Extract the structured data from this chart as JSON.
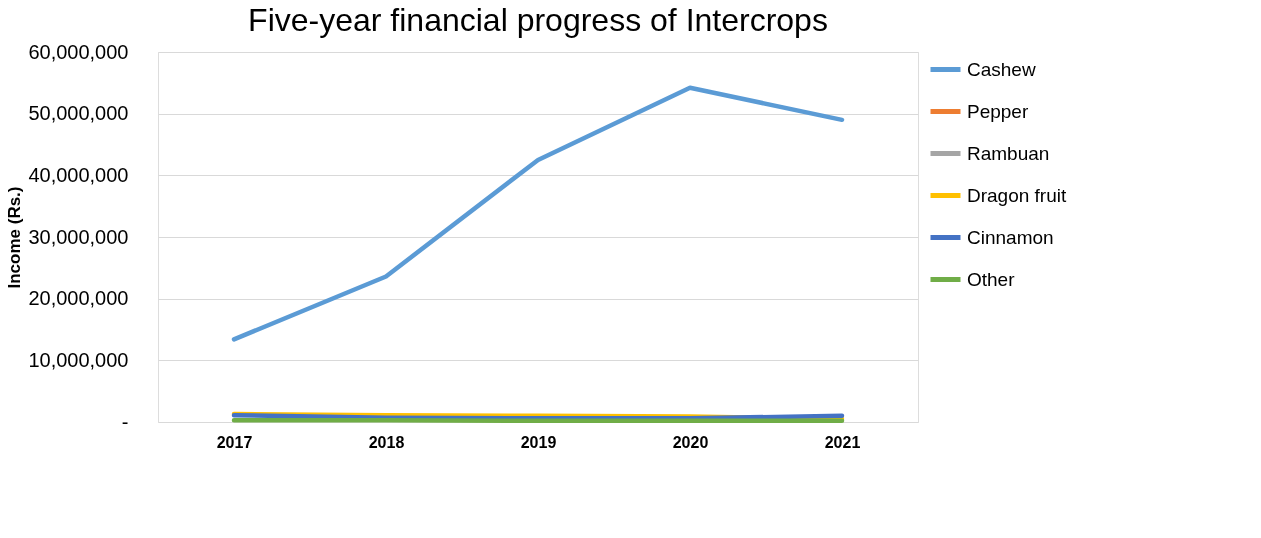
{
  "chart_data": {
    "type": "line",
    "title": "Five-year financial progress  of Intercrops",
    "ylabel": "Income (Rs.)",
    "categories": [
      "2017",
      "2018",
      "2019",
      "2020",
      "2021"
    ],
    "series": [
      {
        "name": "Cashew",
        "color": "#5b9bd5",
        "values": [
          13400000,
          23600000,
          42500000,
          54200000,
          49000000
        ]
      },
      {
        "name": "Pepper",
        "color": "#ed7d31",
        "values": [
          null,
          null,
          null,
          null,
          null
        ]
      },
      {
        "name": "Rambuan",
        "color": "#a5a5a5",
        "values": [
          null,
          null,
          null,
          null,
          null
        ]
      },
      {
        "name": "Dragon fruit",
        "color": "#ffc000",
        "values": [
          1300000,
          1100000,
          1000000,
          900000,
          500000
        ]
      },
      {
        "name": "Cinnamon",
        "color": "#4472c4",
        "values": [
          1100000,
          700000,
          600000,
          600000,
          1000000
        ]
      },
      {
        "name": "Other",
        "color": "#70ad47",
        "values": [
          300000,
          300000,
          200000,
          200000,
          200000
        ]
      }
    ],
    "ylim": [
      0,
      60000000
    ],
    "yticks": [
      {
        "value": 0,
        "label": "-"
      },
      {
        "value": 10000000,
        "label": "10,000,000"
      },
      {
        "value": 20000000,
        "label": "20,000,000"
      },
      {
        "value": 30000000,
        "label": "30,000,000"
      },
      {
        "value": 40000000,
        "label": "40,000,000"
      },
      {
        "value": 50000000,
        "label": "50,000,000"
      },
      {
        "value": 60000000,
        "label": "60,000,000"
      }
    ],
    "grid": "y",
    "legend": "right",
    "line_style": "solid",
    "marker": "none"
  }
}
